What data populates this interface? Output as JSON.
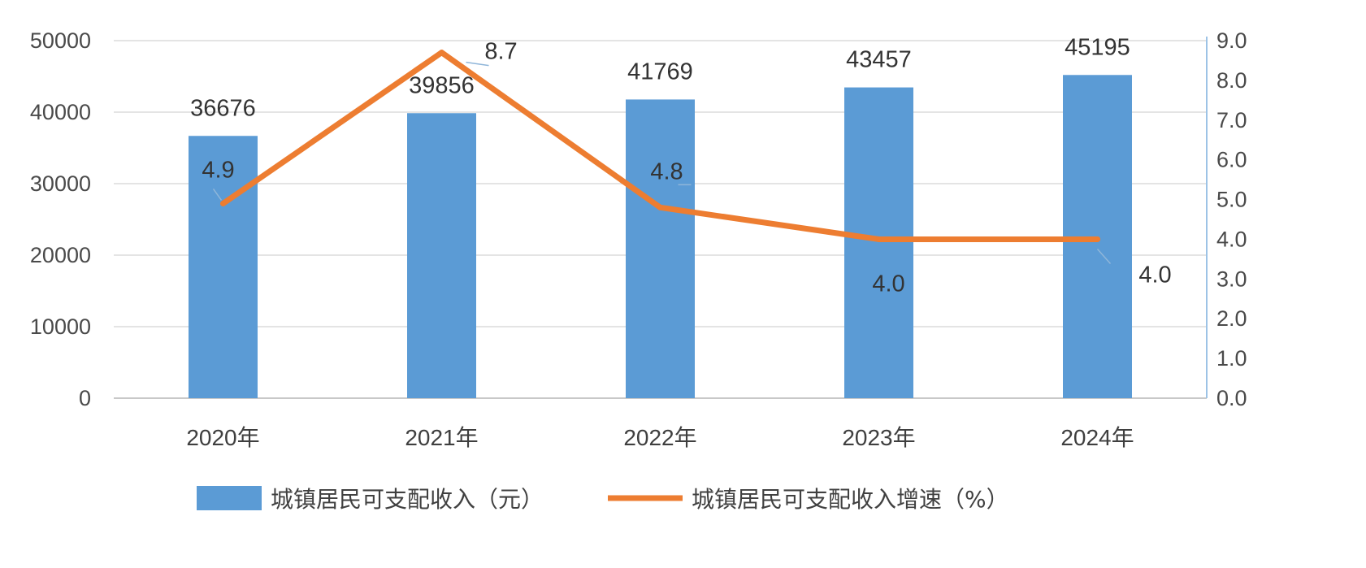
{
  "chart_data": {
    "type": "bar",
    "categories": [
      "2020年",
      "2021年",
      "2022年",
      "2023年",
      "2024年"
    ],
    "series": [
      {
        "name": "城镇居民可支配收入（元）",
        "type": "bar",
        "axis": "left",
        "color": "#5b9bd5",
        "values": [
          36676,
          39856,
          41769,
          43457,
          45195
        ],
        "labels": [
          "36676",
          "39856",
          "41769",
          "43457",
          "45195"
        ]
      },
      {
        "name": "城镇居民可支配收入增速（%）",
        "type": "line",
        "axis": "right",
        "color": "#ed7d31",
        "values": [
          4.9,
          8.7,
          4.8,
          4.0,
          4.0
        ],
        "labels": [
          "4.9",
          "8.7",
          "4.8",
          "4.0",
          "4.0"
        ]
      }
    ],
    "y_left": {
      "range": [
        0,
        50000
      ],
      "ticks": [
        0,
        10000,
        20000,
        30000,
        40000,
        50000
      ],
      "tick_labels": [
        "0",
        "10000",
        "20000",
        "30000",
        "40000",
        "50000"
      ]
    },
    "y_right": {
      "range": [
        0,
        9
      ],
      "ticks": [
        0,
        1,
        2,
        3,
        4,
        5,
        6,
        7,
        8,
        9
      ],
      "tick_labels": [
        "0.0",
        "1.0",
        "2.0",
        "3.0",
        "4.0",
        "5.0",
        "6.0",
        "7.0",
        "8.0",
        "9.0"
      ]
    },
    "grid": true,
    "legend_position": "bottom",
    "title": "",
    "xlabel": "",
    "ylabel": ""
  }
}
